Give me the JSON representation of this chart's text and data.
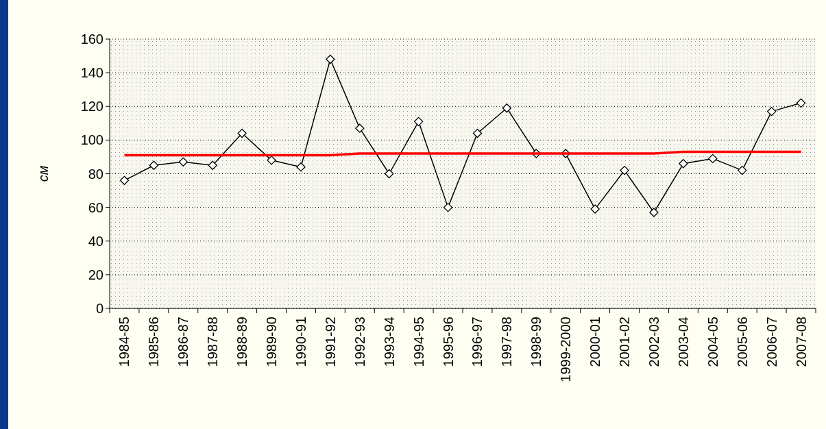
{
  "chart_data": {
    "type": "line",
    "ylabel": "см",
    "categories": [
      "1984-85",
      "1985-86",
      "1986-87",
      "1987-88",
      "1988-89",
      "1989-90",
      "1990-91",
      "1991-92",
      "1992-93",
      "1993-94",
      "1994-95",
      "1995-96",
      "1996-97",
      "1997-98",
      "1998-99",
      "1999-2000",
      "2000-01",
      "2001-02",
      "2002-03",
      "2003-04",
      "2004-05",
      "2005-06",
      "2006-07",
      "2007-08"
    ],
    "series": [
      {
        "color": "#000000",
        "marker": "diamond",
        "values": [
          76,
          85,
          87,
          85,
          104,
          88,
          84,
          148,
          107,
          80,
          111,
          60,
          104,
          119,
          92,
          92,
          59,
          82,
          57,
          86,
          89,
          82,
          117,
          122
        ]
      },
      {
        "color": "#ff0000",
        "marker": "none",
        "values": [
          91,
          91,
          91,
          91,
          91,
          91,
          91,
          91,
          92,
          92,
          92,
          92,
          92,
          92,
          92,
          92,
          92,
          92,
          92,
          93,
          93,
          93,
          93,
          93
        ]
      }
    ],
    "ylim": [
      0,
      160
    ],
    "yticks": [
      0,
      20,
      40,
      60,
      80,
      100,
      120,
      140,
      160
    ],
    "grid": "y"
  }
}
